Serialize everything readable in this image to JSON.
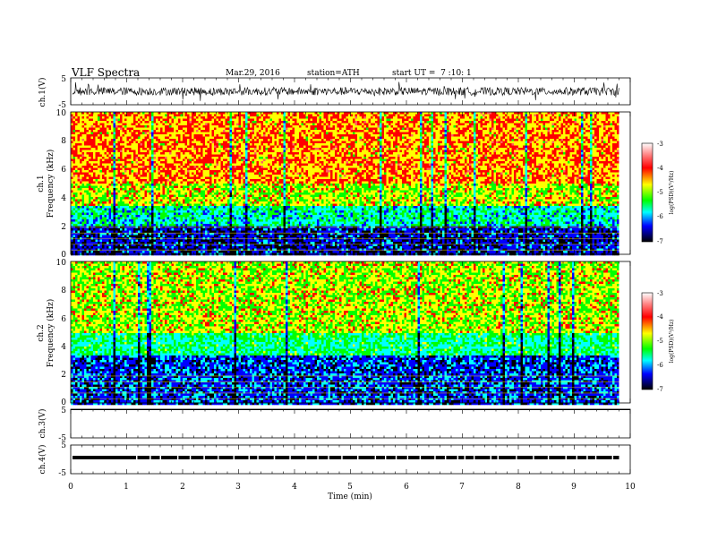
{
  "header": {
    "title": "VLF Spectra",
    "date": "Mar.29, 2016",
    "station": "station=ATH",
    "start": "start UT =  7 :10: 1"
  },
  "panels": {
    "ch1v": {
      "label": "ch.1(V)",
      "ticks": [
        "5",
        "-5"
      ]
    },
    "spec1": {
      "label": "ch.1",
      "sublabel": "Frequency (kHz)",
      "ticks": [
        "10",
        "8",
        "6",
        "4",
        "2",
        "0"
      ]
    },
    "spec2": {
      "label": "ch.2",
      "sublabel": "Frequency (kHz)",
      "ticks": [
        "10",
        "8",
        "6",
        "4",
        "2",
        "0"
      ]
    },
    "ch3v": {
      "label": "ch.3(V)",
      "ticks": [
        "5",
        "-5"
      ]
    },
    "ch4v": {
      "label": "ch.4(V)",
      "ticks": [
        "5",
        "-5"
      ]
    }
  },
  "colorbar": {
    "label": "log(PSD)(V²/Hz)",
    "ticks": [
      "-3",
      "-4",
      "-5",
      "-6",
      "-7"
    ],
    "colors": [
      "#ffffff",
      "#ff6060",
      "#ff0000",
      "#ffff00",
      "#00ff00",
      "#00ffff",
      "#0000ff",
      "#000000"
    ]
  },
  "xaxis": {
    "label": "Time (min)",
    "ticks": [
      "0",
      "1",
      "2",
      "3",
      "4",
      "5",
      "6",
      "7",
      "8",
      "9",
      "10"
    ]
  },
  "chart_data": {
    "type": "heatmap",
    "x_range": [
      0,
      10
    ],
    "x_unit": "min",
    "data_end_min": 9.8,
    "spectrograms": [
      {
        "name": "ch.1",
        "y_range": [
          0,
          10
        ],
        "y_unit": "kHz",
        "value_range": [
          -7,
          -3
        ],
        "bands": [
          {
            "f_from": 0,
            "f_to": 2,
            "level": -6.5
          },
          {
            "f_from": 2,
            "f_to": 3.5,
            "level": -5.5
          },
          {
            "f_from": 3.5,
            "f_to": 5,
            "level": -4.5
          },
          {
            "f_from": 5,
            "f_to": 10,
            "level": -4.0
          }
        ]
      },
      {
        "name": "ch.2",
        "y_range": [
          0,
          10
        ],
        "y_unit": "kHz",
        "value_range": [
          -7,
          -3
        ],
        "bands": [
          {
            "f_from": 0,
            "f_to": 3.5,
            "level": -6.3
          },
          {
            "f_from": 3.5,
            "f_to": 5,
            "level": -5.3
          },
          {
            "f_from": 5,
            "f_to": 10,
            "level": -4.5
          }
        ]
      }
    ],
    "waveforms": [
      {
        "name": "ch.1(V)",
        "y_range": [
          -5,
          5
        ],
        "amplitude_v": 1.5
      },
      {
        "name": "ch.3(V)",
        "y_range": [
          -5,
          5
        ],
        "amplitude_v": 0
      },
      {
        "name": "ch.4(V)",
        "y_range": [
          -5,
          5
        ],
        "amplitude_v": 0
      }
    ]
  }
}
